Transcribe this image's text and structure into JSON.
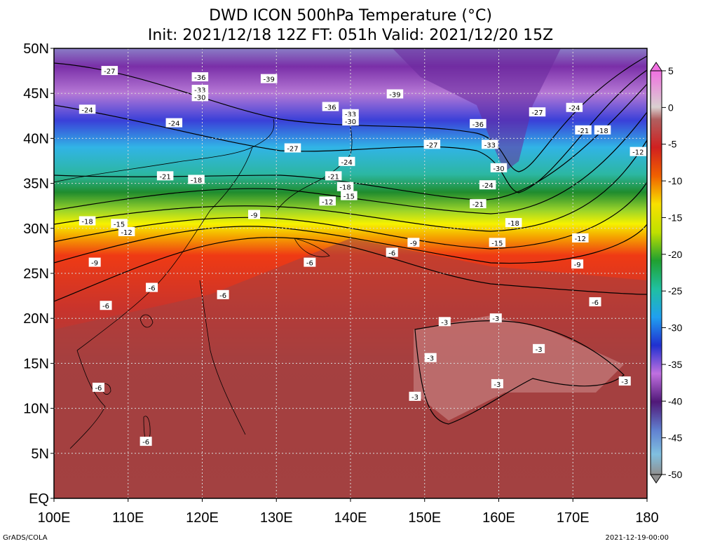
{
  "title": "DWD ICON 500hPa Temperature (°C)",
  "subtitle": "Init: 2021/12/18 12Z  FT: 051h  Valid: 2021/12/20 15Z",
  "footer_left": "GrADS/COLA",
  "footer_right": "2021-12-19-00:00",
  "lat_labels": [
    "50N",
    "45N",
    "40N",
    "35N",
    "30N",
    "25N",
    "20N",
    "15N",
    "10N",
    "5N",
    "EQ"
  ],
  "lon_labels": [
    "100E",
    "110E",
    "120E",
    "130E",
    "140E",
    "150E",
    "160E",
    "170E",
    "180"
  ],
  "colorbar_labels": [
    "5",
    "0",
    "-5",
    "-10",
    "-15",
    "-20",
    "-25",
    "-30",
    "-35",
    "-40",
    "-45",
    "-50"
  ],
  "contour_labels": [
    {
      "text": "-27",
      "lon": 107.5,
      "lat": 47.5
    },
    {
      "text": "-36",
      "lon": 119.7,
      "lat": 46.8
    },
    {
      "text": "-39",
      "lon": 129.0,
      "lat": 46.6
    },
    {
      "text": "-33",
      "lon": 119.7,
      "lat": 45.4
    },
    {
      "text": "-30",
      "lon": 119.7,
      "lat": 44.6
    },
    {
      "text": "-39",
      "lon": 146.0,
      "lat": 44.9
    },
    {
      "text": "-24",
      "lon": 104.5,
      "lat": 43.2
    },
    {
      "text": "-36",
      "lon": 137.3,
      "lat": 43.5
    },
    {
      "text": "-33",
      "lon": 140.0,
      "lat": 42.7
    },
    {
      "text": "-30",
      "lon": 140.0,
      "lat": 41.9
    },
    {
      "text": "-36",
      "lon": 157.2,
      "lat": 41.6
    },
    {
      "text": "-27",
      "lon": 165.2,
      "lat": 42.9
    },
    {
      "text": "-24",
      "lon": 170.2,
      "lat": 43.4
    },
    {
      "text": "-24",
      "lon": 116.2,
      "lat": 41.7
    },
    {
      "text": "-21",
      "lon": 171.4,
      "lat": 40.9
    },
    {
      "text": "-18",
      "lon": 174.0,
      "lat": 40.9
    },
    {
      "text": "-27",
      "lon": 132.2,
      "lat": 38.9
    },
    {
      "text": "-27",
      "lon": 151.0,
      "lat": 39.3
    },
    {
      "text": "-33",
      "lon": 158.8,
      "lat": 39.3
    },
    {
      "text": "-12",
      "lon": 178.8,
      "lat": 38.5
    },
    {
      "text": "-24",
      "lon": 139.5,
      "lat": 37.4
    },
    {
      "text": "-30",
      "lon": 160.0,
      "lat": 36.7
    },
    {
      "text": "-21",
      "lon": 115.0,
      "lat": 35.8
    },
    {
      "text": "-18",
      "lon": 119.2,
      "lat": 35.4
    },
    {
      "text": "-21",
      "lon": 137.7,
      "lat": 35.8
    },
    {
      "text": "-18",
      "lon": 139.3,
      "lat": 34.6
    },
    {
      "text": "-24",
      "lon": 158.5,
      "lat": 34.8
    },
    {
      "text": "-15",
      "lon": 139.8,
      "lat": 33.6
    },
    {
      "text": "-12",
      "lon": 136.9,
      "lat": 33.0
    },
    {
      "text": "-21",
      "lon": 157.2,
      "lat": 32.7
    },
    {
      "text": "-9",
      "lon": 127.0,
      "lat": 31.5
    },
    {
      "text": "-18",
      "lon": 104.5,
      "lat": 30.8
    },
    {
      "text": "-15",
      "lon": 108.8,
      "lat": 30.5
    },
    {
      "text": "-12",
      "lon": 109.8,
      "lat": 29.6
    },
    {
      "text": "-18",
      "lon": 162.0,
      "lat": 30.6
    },
    {
      "text": "-12",
      "lon": 171.0,
      "lat": 28.9
    },
    {
      "text": "-9",
      "lon": 148.5,
      "lat": 28.4
    },
    {
      "text": "-15",
      "lon": 159.8,
      "lat": 28.4
    },
    {
      "text": "-6",
      "lon": 145.6,
      "lat": 27.3
    },
    {
      "text": "-9",
      "lon": 105.5,
      "lat": 26.2
    },
    {
      "text": "-6",
      "lon": 134.5,
      "lat": 26.2
    },
    {
      "text": "-9",
      "lon": 170.6,
      "lat": 26.0
    },
    {
      "text": "-6",
      "lon": 113.2,
      "lat": 23.4
    },
    {
      "text": "-6",
      "lon": 122.8,
      "lat": 22.6
    },
    {
      "text": "-6",
      "lon": 107.0,
      "lat": 21.4
    },
    {
      "text": "-6",
      "lon": 173.0,
      "lat": 21.8
    },
    {
      "text": "-3",
      "lon": 152.7,
      "lat": 19.6
    },
    {
      "text": "-3",
      "lon": 159.6,
      "lat": 20.0
    },
    {
      "text": "-3",
      "lon": 165.4,
      "lat": 16.6
    },
    {
      "text": "-3",
      "lon": 150.8,
      "lat": 15.6
    },
    {
      "text": "-3",
      "lon": 159.8,
      "lat": 12.7
    },
    {
      "text": "-3",
      "lon": 177.0,
      "lat": 13.0
    },
    {
      "text": "-3",
      "lon": 148.7,
      "lat": 11.3
    },
    {
      "text": "-6",
      "lon": 106.0,
      "lat": 12.3
    },
    {
      "text": "-6",
      "lon": 112.4,
      "lat": 6.3
    }
  ]
}
